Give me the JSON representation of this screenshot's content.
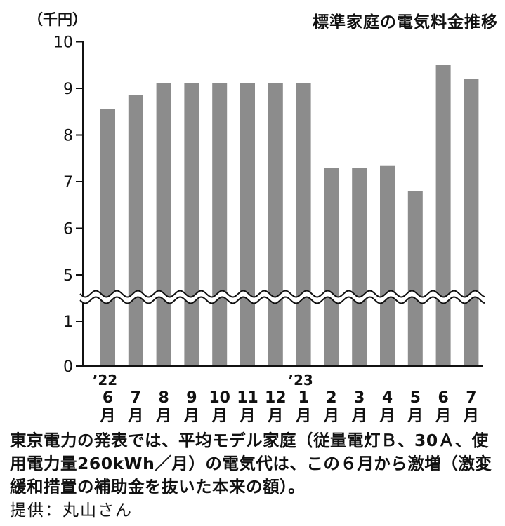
{
  "chart_data": {
    "type": "bar",
    "title": "標準家庭の電気料金推移",
    "unit_label": "（千円）",
    "year_labels": [
      "’22",
      "’23"
    ],
    "categories": [
      "6月",
      "7月",
      "8月",
      "9月",
      "10月",
      "11月",
      "12月",
      "1月",
      "2月",
      "3月",
      "4月",
      "5月",
      "6月",
      "7月"
    ],
    "year_label_at": [
      0,
      7
    ],
    "values": [
      8.55,
      8.86,
      9.11,
      9.12,
      9.12,
      9.12,
      9.12,
      9.12,
      7.3,
      7.3,
      7.35,
      6.8,
      9.5,
      9.2
    ],
    "yticks": [
      "0",
      "1",
      "5",
      "6",
      "7",
      "8",
      "9",
      "10"
    ],
    "axis_break": {
      "from": 1,
      "to": 4.5
    },
    "ylim": [
      0,
      10
    ],
    "grid": false,
    "bar_color": "#8c8c8c"
  },
  "caption": "東京電力の発表では、平均モデル家庭（従量電灯Ｂ、30Ａ、使用電力量260kWh／月）の電気代は、この６月から激増（激変緩和措置の補助金を抜いた本来の額）。",
  "credit": "提供：丸山さん"
}
